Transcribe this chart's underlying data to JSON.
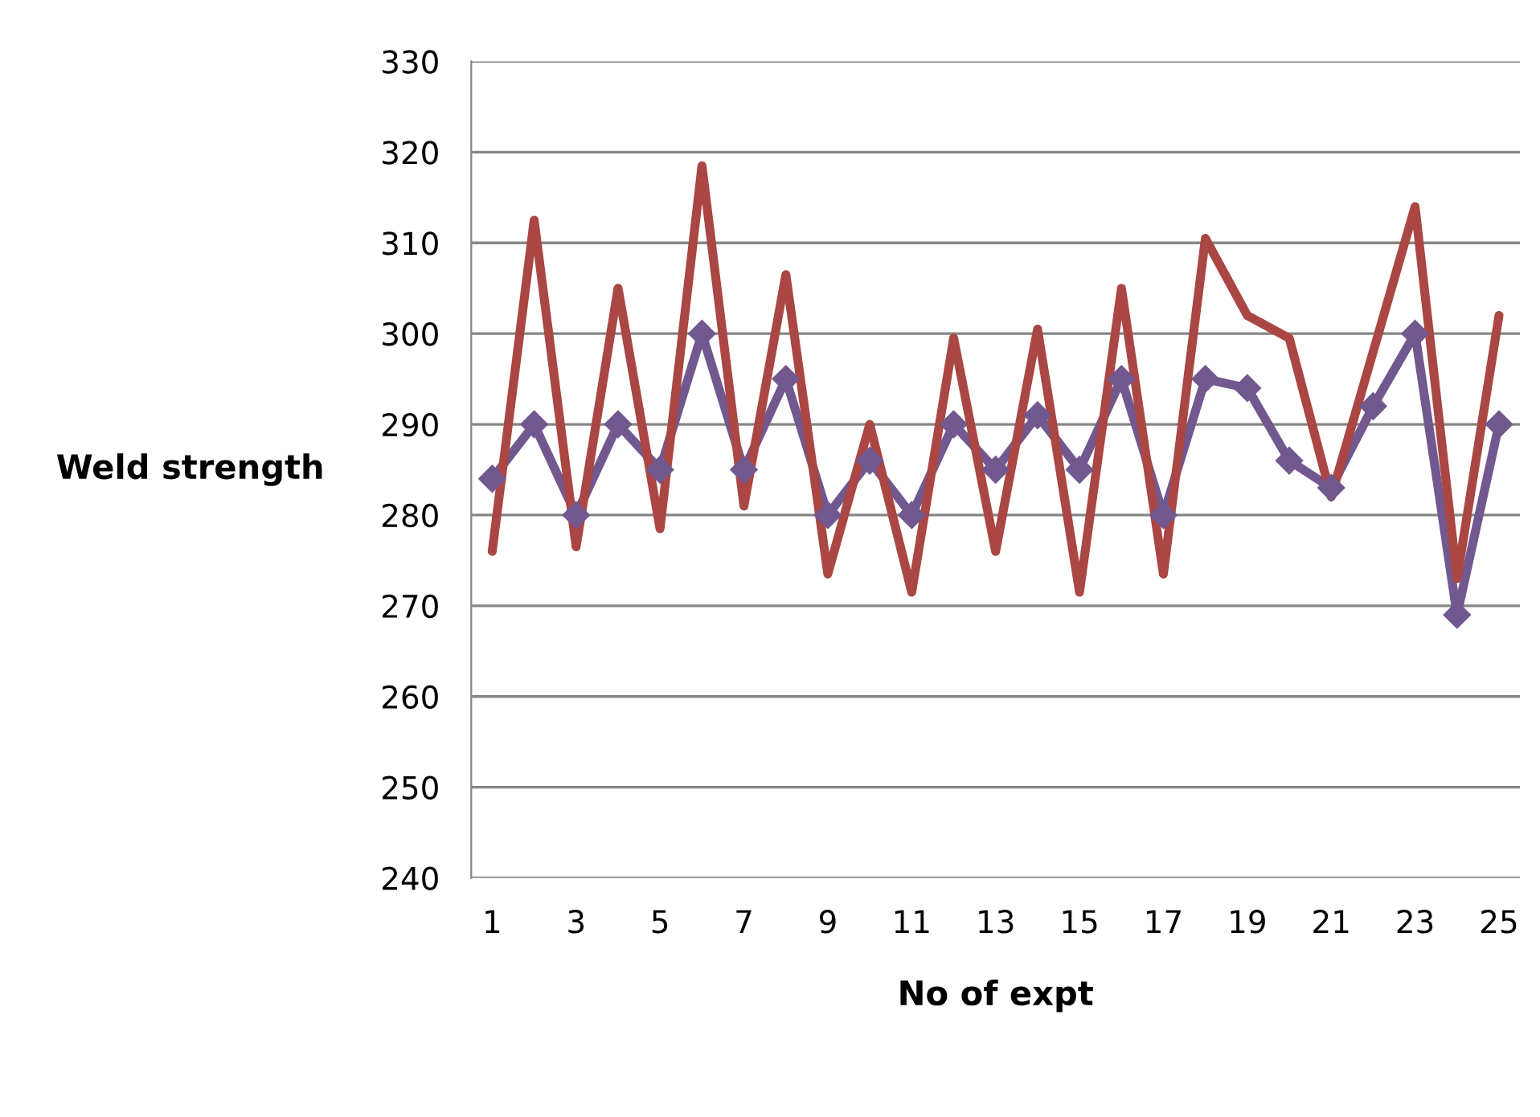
{
  "chart_data": {
    "type": "line",
    "xlabel": "No of expt",
    "ylabel": "Weld strength",
    "categories": [
      "1",
      null,
      "3",
      null,
      "5",
      null,
      "7",
      null,
      "9",
      null,
      "11",
      null,
      "13",
      null,
      "15",
      null,
      "17",
      null,
      "19",
      null,
      "21",
      null,
      "23",
      null,
      "25"
    ],
    "series": [
      {
        "color": "#aa4643",
        "marker": "none",
        "values": [
          276,
          312.5,
          276.5,
          305,
          278.5,
          318.5,
          281,
          306.5,
          273.5,
          290,
          271.5,
          299.5,
          276,
          300.5,
          271.5,
          305,
          273.5,
          310.5,
          302,
          299.5,
          282,
          298,
          314,
          273,
          302
        ]
      },
      {
        "color": "#71588f",
        "marker": "diamond",
        "values": [
          284,
          290,
          280,
          290,
          285,
          300,
          285,
          295,
          280,
          286,
          280,
          290,
          285,
          291,
          285,
          295,
          280,
          295,
          294,
          286,
          283,
          292,
          300,
          269,
          290
        ]
      }
    ],
    "ylim": [
      240,
      330
    ],
    "yticks": [
      240,
      250,
      260,
      270,
      280,
      290,
      300,
      310,
      320,
      330
    ],
    "grid": "y",
    "legend": false
  }
}
